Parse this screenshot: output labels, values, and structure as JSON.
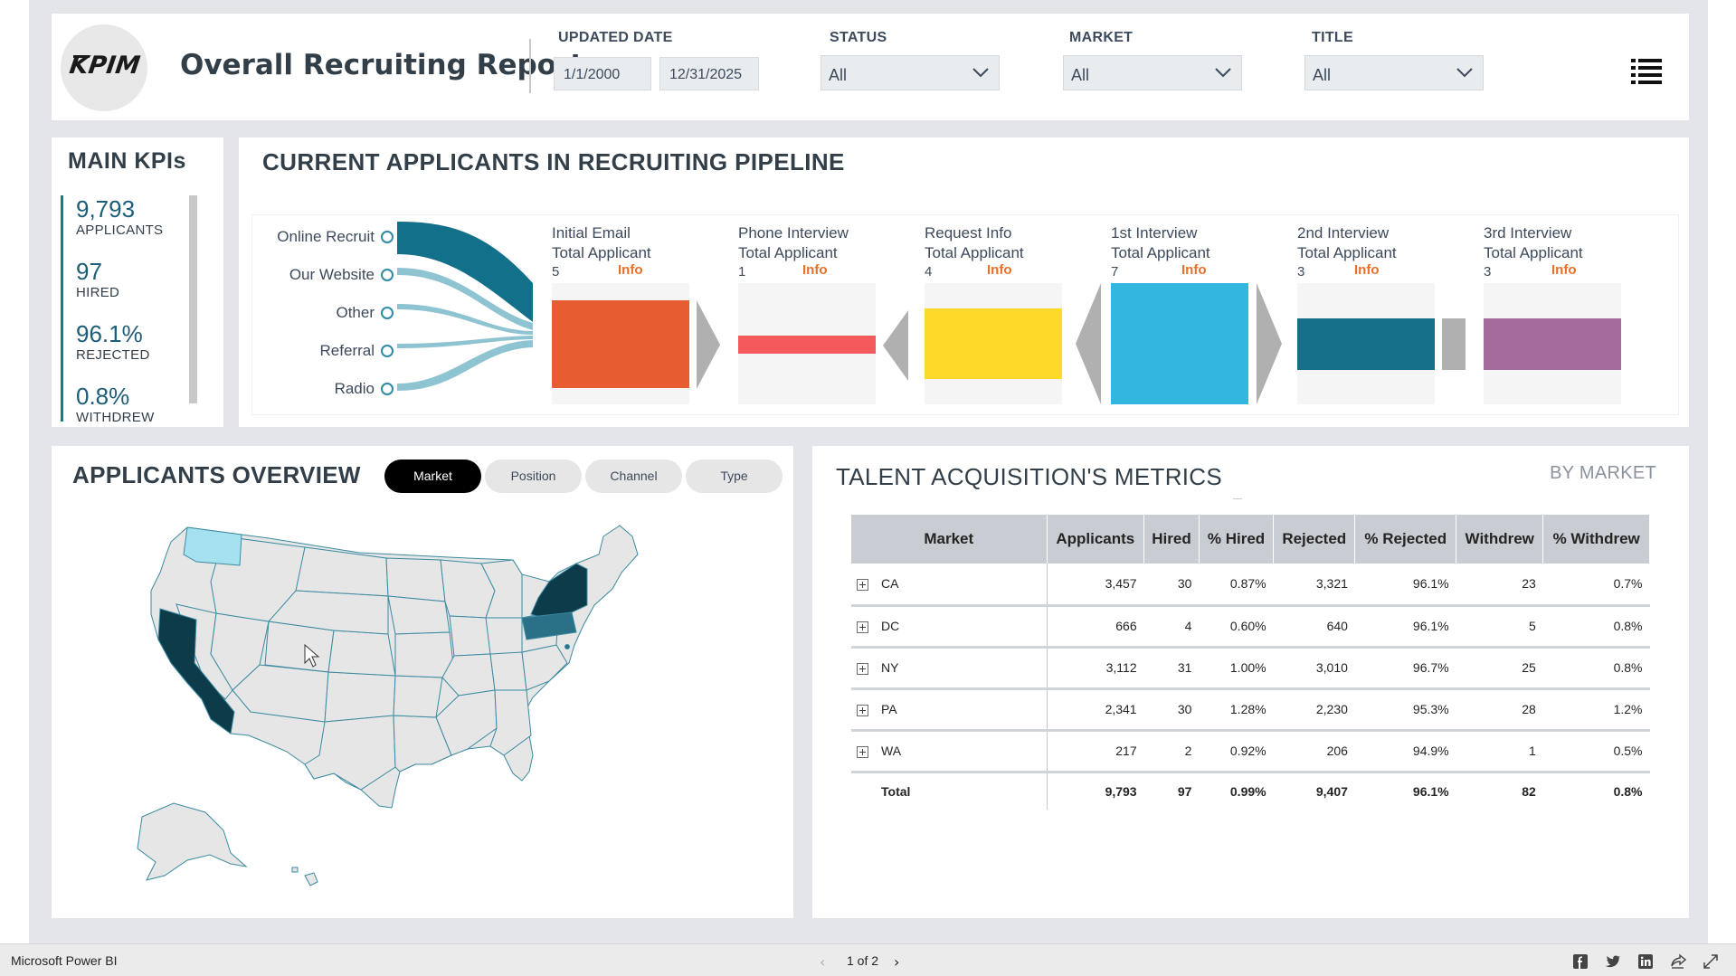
{
  "header": {
    "logo_text": "KPIM",
    "title": "Overall Recruiting Report",
    "updated_date_label": "UPDATED DATE",
    "date_from": "1/1/2000",
    "date_to": "12/31/2025",
    "status_label": "STATUS",
    "status_value": "All",
    "market_label": "MARKET",
    "market_value": "All",
    "title_label": "TITLE",
    "title_value": "All"
  },
  "kpis": {
    "title": "MAIN KPIs",
    "items": [
      {
        "value": "9,793",
        "label": "APPLICANTS"
      },
      {
        "value": "97",
        "label": "HIRED"
      },
      {
        "value": "96.1%",
        "label": "REJECTED"
      },
      {
        "value": "0.8%",
        "label": "WITHDREW"
      }
    ]
  },
  "pipeline": {
    "title": "CURRENT APPLICANTS IN RECRUITING PIPELINE",
    "channels": [
      "Online Recruit",
      "Our Website",
      "Other",
      "Referral",
      "Radio"
    ],
    "stage_sub_label": "Total Applicant",
    "info_label": "Info",
    "stages": [
      {
        "name": "Initial Email",
        "count": "5",
        "color": "#e85c31"
      },
      {
        "name": "Phone Interview",
        "count": "1",
        "color": "#f45a5c"
      },
      {
        "name": "Request Info",
        "count": "4",
        "color": "#fdd92a"
      },
      {
        "name": "1st Interview",
        "count": "7",
        "color": "#33b7de"
      },
      {
        "name": "2nd Interview",
        "count": "3",
        "color": "#147089"
      },
      {
        "name": "3rd Interview",
        "count": "3",
        "color": "#a56b9c"
      }
    ]
  },
  "overview": {
    "title": "APPLICANTS OVERVIEW",
    "tabs": [
      "Market",
      "Position",
      "Channel",
      "Type"
    ],
    "active_tab": "Market"
  },
  "metrics": {
    "title": "TALENT ACQUISITION'S METRICS",
    "by_label": "BY MARKET",
    "columns": [
      "Market",
      "Applicants",
      "Hired",
      "% Hired",
      "Rejected",
      "% Rejected",
      "Withdrew",
      "% Withdrew"
    ],
    "rows": [
      [
        "CA",
        "3,457",
        "30",
        "0.87%",
        "3,321",
        "96.1%",
        "23",
        "0.7%"
      ],
      [
        "DC",
        "666",
        "4",
        "0.60%",
        "640",
        "96.1%",
        "5",
        "0.8%"
      ],
      [
        "NY",
        "3,112",
        "31",
        "1.00%",
        "3,010",
        "96.7%",
        "25",
        "0.8%"
      ],
      [
        "PA",
        "2,341",
        "30",
        "1.28%",
        "2,230",
        "95.3%",
        "28",
        "1.2%"
      ],
      [
        "WA",
        "217",
        "2",
        "0.92%",
        "206",
        "94.9%",
        "1",
        "0.5%"
      ]
    ],
    "total": [
      "Total",
      "9,793",
      "97",
      "0.99%",
      "9,407",
      "96.1%",
      "82",
      "0.8%"
    ]
  },
  "footer": {
    "brand": "Microsoft Power BI",
    "page_indicator": "1 of 2"
  },
  "colors": {
    "accent": "#117a8b",
    "sankey": "#13708a",
    "sankey_light": "#8ec3d1",
    "map_dark": "#0d3b4a",
    "map_mid": "#2a7187",
    "map_light": "#a6e1ef",
    "map_default": "#e6e6e6"
  }
}
